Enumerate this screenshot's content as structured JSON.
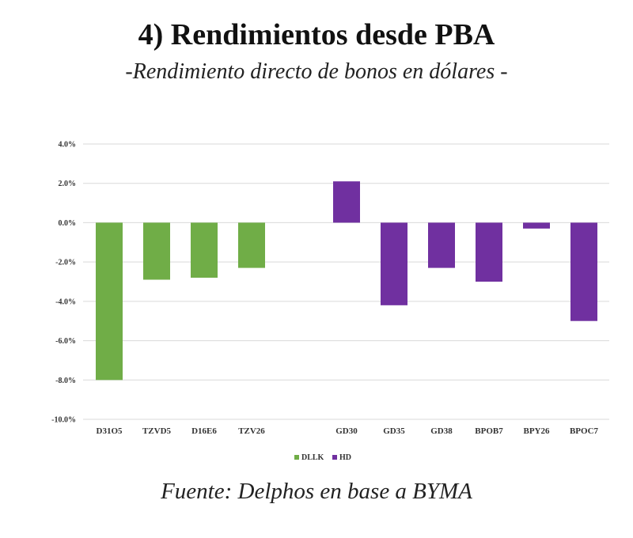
{
  "header": {
    "title": "4)  Rendimientos desde PBA",
    "subtitle": "-Rendimiento directo de bonos en dólares -"
  },
  "footer": {
    "source": "Fuente:  Delphos en base a BYMA"
  },
  "chart_data": {
    "type": "bar",
    "title": "",
    "xlabel": "",
    "ylabel": "",
    "ylim": [
      -10,
      4
    ],
    "y_ticks": [
      4,
      2,
      0,
      -2,
      -4,
      -6,
      -8,
      -10
    ],
    "y_tick_labels": [
      "4.0%",
      "2.0%",
      "0.0%",
      "-2.0%",
      "-4.0%",
      "-6.0%",
      "-8.0%",
      "-10.0%"
    ],
    "grid": true,
    "legend_position": "bottom",
    "series": [
      {
        "name": "DLLK",
        "color": "#70ad47",
        "categories": [
          "D31O5",
          "TZVD5",
          "D16E6",
          "TZV26"
        ],
        "values": [
          -8.0,
          -2.9,
          -2.8,
          -2.3
        ]
      },
      {
        "name": "HD",
        "color": "#7030a0",
        "categories": [
          "GD30",
          "GD35",
          "GD38",
          "BPOB7",
          "BPY26",
          "BPOC7"
        ],
        "values": [
          2.1,
          -4.2,
          -2.3,
          -3.0,
          -0.3,
          -5.0
        ]
      }
    ]
  }
}
